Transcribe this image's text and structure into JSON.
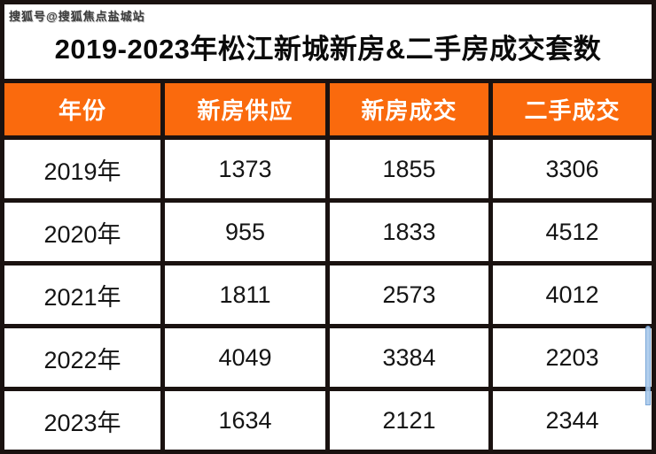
{
  "watermark": "搜狐号@搜狐焦点盐城站",
  "title": "2019-2023年松江新城新房&二手房成交套数",
  "colors": {
    "header_bg": "#fa6a0d",
    "header_text": "#ffffff",
    "grid_lines": "#1a1210",
    "body_text": "#141414",
    "selection_artifact": "#a9c9ec"
  },
  "table": {
    "columns": [
      "年份",
      "新房供应",
      "新房成交",
      "二手成交"
    ],
    "rows": [
      [
        "2019年",
        "1373",
        "1855",
        "3306"
      ],
      [
        "2020年",
        "955",
        "1833",
        "4512"
      ],
      [
        "2021年",
        "1811",
        "2573",
        "4012"
      ],
      [
        "2022年",
        "4049",
        "3384",
        "2203"
      ],
      [
        "2023年",
        "1634",
        "2121",
        "2344"
      ]
    ]
  },
  "chart_data": {
    "type": "table",
    "title": "2019-2023年松江新城新房&二手房成交套数",
    "categories": [
      "2019年",
      "2020年",
      "2021年",
      "2022年",
      "2023年"
    ],
    "series": [
      {
        "name": "新房供应",
        "values": [
          1373,
          955,
          1811,
          4049,
          1634
        ]
      },
      {
        "name": "新房成交",
        "values": [
          1855,
          1833,
          2573,
          3384,
          2121
        ]
      },
      {
        "name": "二手成交",
        "values": [
          3306,
          4512,
          4012,
          2203,
          2344
        ]
      }
    ]
  }
}
